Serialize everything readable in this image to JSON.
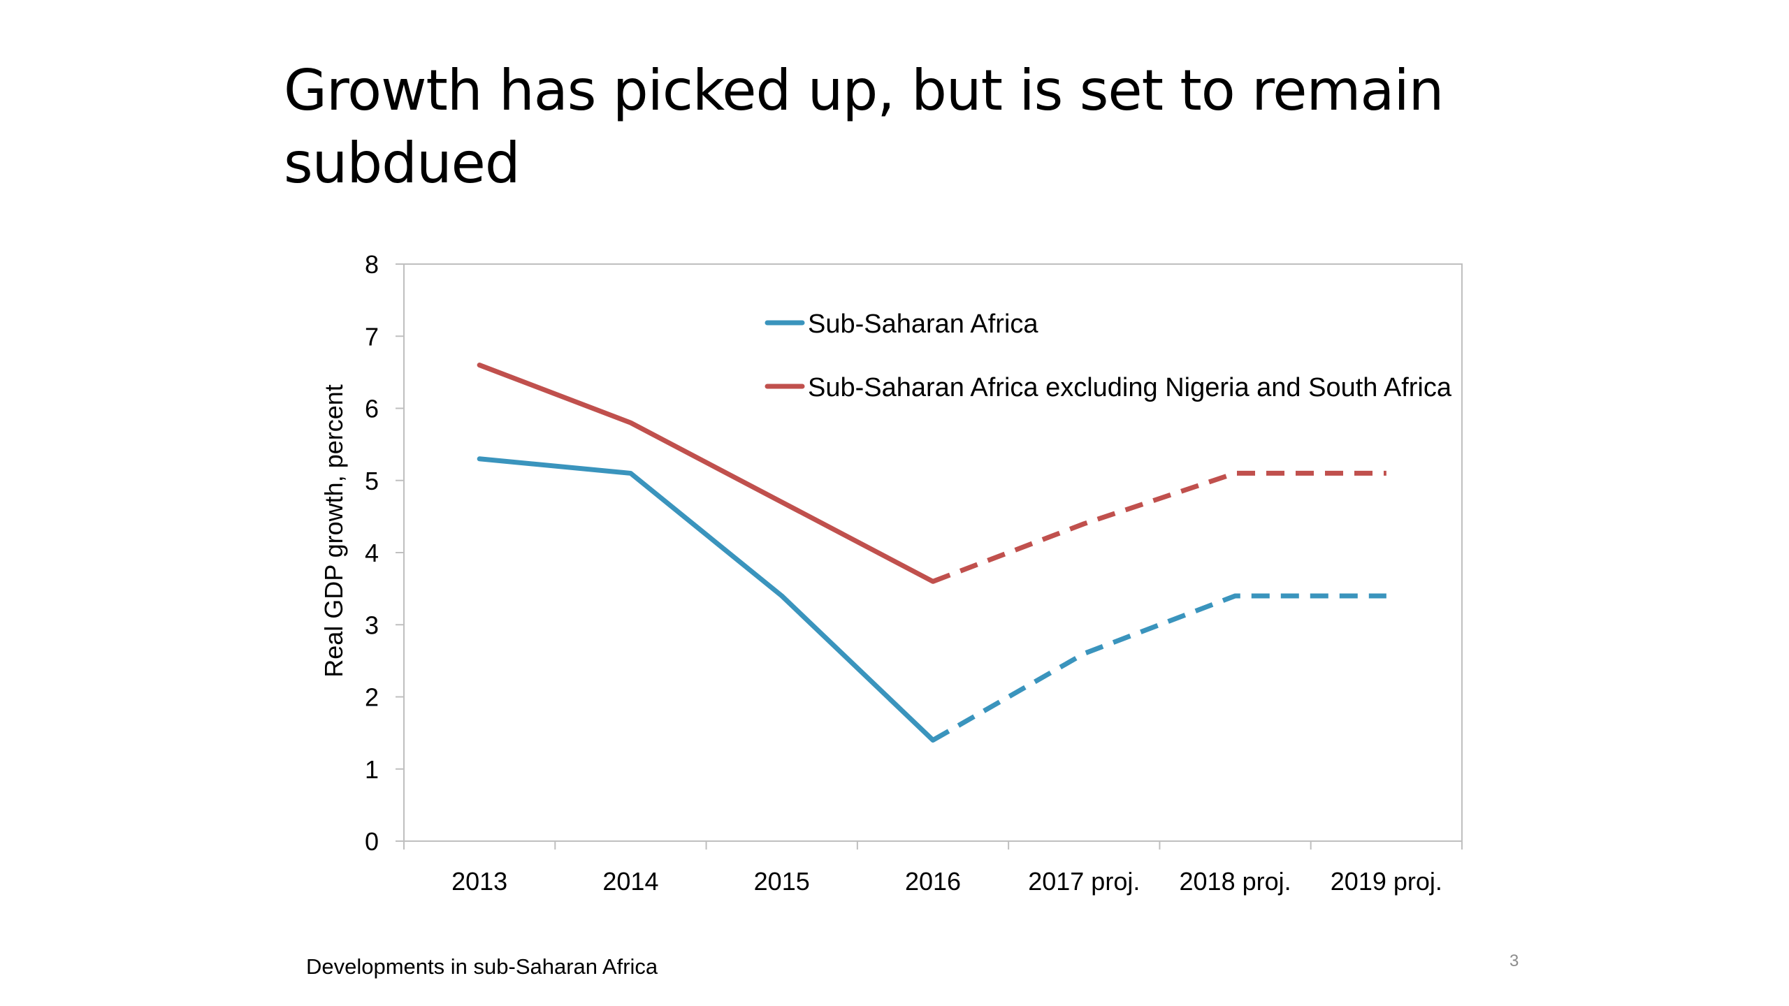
{
  "slide": {
    "title": "Growth has picked up, but is set to remain subdued",
    "footer": "Developments in sub-Saharan Africa",
    "page_number": "3"
  },
  "chart_data": {
    "type": "line",
    "title": "",
    "xlabel": "",
    "ylabel": "Real GDP growth, percent",
    "ylim": [
      0,
      8
    ],
    "yticks": [
      0,
      1,
      2,
      3,
      4,
      5,
      6,
      7,
      8
    ],
    "categories": [
      "2013",
      "2014",
      "2015",
      "2016",
      "2017 proj.",
      "2018 proj.",
      "2019 proj."
    ],
    "projection_start_index": 3,
    "grid": false,
    "legend_position": "top-right",
    "series": [
      {
        "name": "Sub-Saharan Africa",
        "color": "#3a94bd",
        "values": [
          5.3,
          5.1,
          3.4,
          1.4,
          2.6,
          3.4,
          3.4
        ]
      },
      {
        "name": "Sub-Saharan Africa excluding Nigeria and South Africa",
        "color": "#c0504d",
        "values": [
          6.6,
          5.8,
          4.7,
          3.6,
          4.4,
          5.1,
          5.1
        ]
      }
    ]
  }
}
